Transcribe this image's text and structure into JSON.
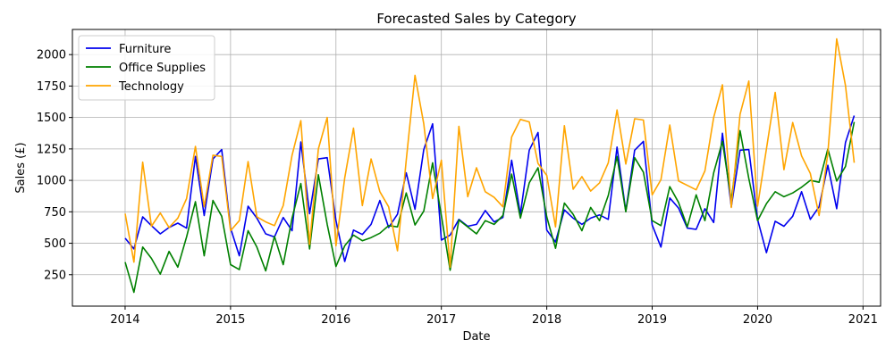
{
  "chart_data": {
    "type": "line",
    "title": "Forecasted Sales by Category",
    "xlabel": "Date",
    "ylabel": "Sales (£)",
    "x_ticks": [
      "2014",
      "2015",
      "2016",
      "2017",
      "2018",
      "2019",
      "2020",
      "2021"
    ],
    "y_ticks": [
      250,
      500,
      750,
      1000,
      1250,
      1500,
      1750,
      2000
    ],
    "xlim": [
      "2013-07",
      "2021-03"
    ],
    "ylim": [
      0,
      2200
    ],
    "grid": true,
    "legend_position": "top-left",
    "x": [
      "2014-01",
      "2014-02",
      "2014-03",
      "2014-04",
      "2014-05",
      "2014-06",
      "2014-07",
      "2014-08",
      "2014-09",
      "2014-10",
      "2014-11",
      "2014-12",
      "2015-01",
      "2015-02",
      "2015-03",
      "2015-04",
      "2015-05",
      "2015-06",
      "2015-07",
      "2015-08",
      "2015-09",
      "2015-10",
      "2015-11",
      "2015-12",
      "2016-01",
      "2016-02",
      "2016-03",
      "2016-04",
      "2016-05",
      "2016-06",
      "2016-07",
      "2016-08",
      "2016-09",
      "2016-10",
      "2016-11",
      "2016-12",
      "2017-01",
      "2017-02",
      "2017-03",
      "2017-04",
      "2017-05",
      "2017-06",
      "2017-07",
      "2017-08",
      "2017-09",
      "2017-10",
      "2017-11",
      "2017-12",
      "2018-01",
      "2018-02",
      "2018-03",
      "2018-04",
      "2018-05",
      "2018-06",
      "2018-07",
      "2018-08",
      "2018-09",
      "2018-10",
      "2018-11",
      "2018-12",
      "2019-01",
      "2019-02",
      "2019-03",
      "2019-04",
      "2019-05",
      "2019-06",
      "2019-07",
      "2019-08",
      "2019-09",
      "2019-10",
      "2019-11",
      "2019-12",
      "2020-01",
      "2020-02",
      "2020-03",
      "2020-04",
      "2020-05",
      "2020-06",
      "2020-07",
      "2020-08",
      "2020-09",
      "2020-10",
      "2020-11",
      "2020-12"
    ],
    "series": [
      {
        "name": "Furniture",
        "color": "#0000ee",
        "values": [
          540,
          455,
          710,
          640,
          575,
          625,
          660,
          620,
          1190,
          720,
          1170,
          1245,
          620,
          400,
          795,
          700,
          575,
          550,
          705,
          600,
          1305,
          735,
          1170,
          1180,
          680,
          355,
          605,
          570,
          650,
          840,
          625,
          730,
          1060,
          770,
          1245,
          1450,
          525,
          565,
          690,
          635,
          650,
          760,
          670,
          705,
          1160,
          730,
          1240,
          1380,
          605,
          510,
          765,
          700,
          650,
          700,
          725,
          690,
          1265,
          755,
          1240,
          1310,
          645,
          470,
          860,
          780,
          620,
          610,
          775,
          665,
          1375,
          790,
          1240,
          1245,
          690,
          425,
          675,
          635,
          715,
          910,
          690,
          790,
          1120,
          775,
          1300,
          1515
        ]
      },
      {
        "name": "Office Supplies",
        "color": "#008000",
        "values": [
          350,
          110,
          470,
          380,
          255,
          435,
          310,
          550,
          830,
          400,
          840,
          715,
          330,
          290,
          600,
          470,
          280,
          555,
          330,
          700,
          975,
          455,
          1045,
          650,
          315,
          480,
          565,
          520,
          545,
          580,
          640,
          630,
          900,
          645,
          755,
          1140,
          720,
          285,
          685,
          630,
          575,
          680,
          650,
          720,
          1050,
          700,
          980,
          1100,
          710,
          460,
          820,
          730,
          600,
          785,
          680,
          880,
          1190,
          750,
          1180,
          1065,
          680,
          640,
          950,
          825,
          630,
          885,
          680,
          1060,
          1310,
          840,
          1395,
          1015,
          680,
          815,
          910,
          870,
          900,
          945,
          1000,
          985,
          1250,
          995,
          1110,
          1465
        ]
      },
      {
        "name": "Technology",
        "color": "#ffa500",
        "values": [
          735,
          350,
          1145,
          635,
          740,
          625,
          700,
          855,
          1270,
          790,
          1200,
          1190,
          600,
          680,
          1150,
          710,
          670,
          640,
          800,
          1200,
          1475,
          490,
          1250,
          1500,
          480,
          1020,
          1415,
          800,
          1170,
          910,
          790,
          440,
          1160,
          1835,
          1450,
          855,
          1160,
          310,
          1430,
          870,
          1100,
          910,
          865,
          790,
          1345,
          1485,
          1465,
          1135,
          1040,
          630,
          1435,
          930,
          1030,
          915,
          980,
          1140,
          1560,
          1130,
          1490,
          1480,
          885,
          1005,
          1440,
          995,
          960,
          925,
          1075,
          1500,
          1760,
          785,
          1525,
          1790,
          795,
          1250,
          1700,
          1085,
          1460,
          1195,
          1055,
          720,
          1215,
          2125,
          1755,
          1140
        ]
      }
    ]
  }
}
